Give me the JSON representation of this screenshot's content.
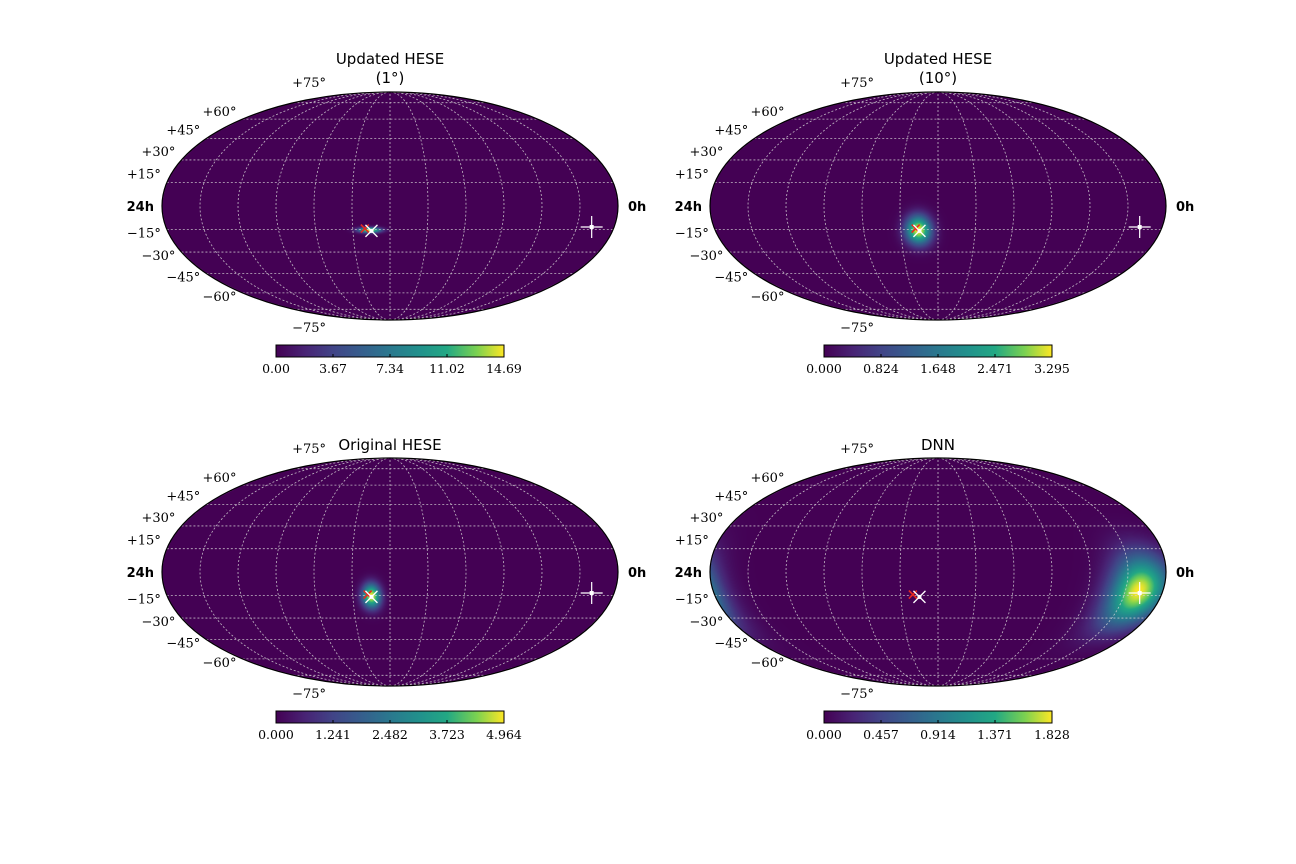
{
  "figure": {
    "panels": [
      {
        "title_line1": "Updated HESE",
        "title_line2": "(1°)",
        "lat_labels": [
          "+75°",
          "+60°",
          "+45°",
          "+30°",
          "+15°",
          "−15°",
          "−30°",
          "−45°",
          "−60°",
          "−75°"
        ],
        "ra_left": "24h",
        "ra_right": "0h",
        "colorbar_ticks": [
          "0.00",
          "3.67",
          "7.34",
          "11.02",
          "14.69"
        ]
      },
      {
        "title_line1": "Updated HESE",
        "title_line2": "(10°)",
        "lat_labels": [
          "+75°",
          "+60°",
          "+45°",
          "+30°",
          "+15°",
          "−15°",
          "−30°",
          "−45°",
          "−60°",
          "−75°"
        ],
        "ra_left": "24h",
        "ra_right": "0h",
        "colorbar_ticks": [
          "0.000",
          "0.824",
          "1.648",
          "2.471",
          "3.295"
        ]
      },
      {
        "title_line1": "Original HESE",
        "title_line2": "",
        "lat_labels": [
          "+75°",
          "+60°",
          "+45°",
          "+30°",
          "+15°",
          "−15°",
          "−30°",
          "−45°",
          "−60°",
          "−75°"
        ],
        "ra_left": "24h",
        "ra_right": "0h",
        "colorbar_ticks": [
          "0.000",
          "1.241",
          "2.482",
          "3.723",
          "4.964"
        ]
      },
      {
        "title_line1": "DNN",
        "title_line2": "",
        "lat_labels": [
          "+75°",
          "+60°",
          "+45°",
          "+30°",
          "+15°",
          "−15°",
          "−30°",
          "−45°",
          "−60°",
          "−75°"
        ],
        "ra_left": "24h",
        "ra_right": "0h",
        "colorbar_ticks": [
          "0.000",
          "0.457",
          "0.914",
          "1.371",
          "1.828"
        ]
      }
    ]
  },
  "chart_data": [
    {
      "type": "heatmap",
      "projection": "mollweide",
      "title": "Updated HESE (1°)",
      "colormap": "viridis",
      "colorbar_range": [
        0.0,
        14.69
      ],
      "colorbar_ticks": [
        0.0,
        3.67,
        7.34,
        11.02,
        14.69
      ],
      "grid": true,
      "hotspots": [
        {
          "ra_h": 13.1,
          "dec_deg": -15.5,
          "sigma_lon_deg": 6,
          "sigma_lat_deg": 1.2,
          "peak": 1.0
        }
      ],
      "markers": [
        {
          "kind": "red-x",
          "ra_h": 13.35,
          "dec_deg": -14.5
        },
        {
          "kind": "white-x",
          "ra_h": 13.0,
          "dec_deg": -16
        },
        {
          "kind": "white-cross",
          "ra_h": 1.2,
          "dec_deg": -13.5
        }
      ]
    },
    {
      "type": "heatmap",
      "projection": "mollweide",
      "title": "Updated HESE (10°)",
      "colormap": "viridis",
      "colorbar_range": [
        0.0,
        3.295
      ],
      "colorbar_ticks": [
        0.0,
        0.824,
        1.648,
        2.471,
        3.295
      ],
      "grid": true,
      "hotspots": [
        {
          "ra_h": 13.05,
          "dec_deg": -15.5,
          "sigma_lon_deg": 7,
          "sigma_lat_deg": 6.5,
          "peak": 1.0
        }
      ],
      "markers": [
        {
          "kind": "red-x",
          "ra_h": 13.2,
          "dec_deg": -14.5
        },
        {
          "kind": "white-x",
          "ra_h": 13.0,
          "dec_deg": -16
        },
        {
          "kind": "white-cross",
          "ra_h": 1.2,
          "dec_deg": -13.5
        }
      ]
    },
    {
      "type": "heatmap",
      "projection": "mollweide",
      "title": "Original HESE",
      "colormap": "viridis",
      "colorbar_range": [
        0.0,
        4.964
      ],
      "colorbar_ticks": [
        0.0,
        1.241,
        2.482,
        3.723,
        4.964
      ],
      "grid": true,
      "hotspots": [
        {
          "ra_h": 13.0,
          "dec_deg": -15.5,
          "sigma_lon_deg": 5,
          "sigma_lat_deg": 5.5,
          "peak": 1.0
        }
      ],
      "markers": [
        {
          "kind": "red-x",
          "ra_h": 13.2,
          "dec_deg": -14.5
        },
        {
          "kind": "white-x",
          "ra_h": 13.0,
          "dec_deg": -16
        },
        {
          "kind": "white-cross",
          "ra_h": 1.2,
          "dec_deg": -13.5
        }
      ]
    },
    {
      "type": "heatmap",
      "projection": "mollweide",
      "title": "DNN",
      "colormap": "viridis",
      "colorbar_range": [
        0.0,
        1.828
      ],
      "colorbar_ticks": [
        0.0,
        0.457,
        0.914,
        1.371,
        1.828
      ],
      "grid": true,
      "hotspots": [
        {
          "ra_h": 1.3,
          "dec_deg": -12,
          "sigma_lon_deg": 16,
          "sigma_lat_deg": 16,
          "peak": 1.0
        }
      ],
      "markers": [
        {
          "kind": "red-x",
          "ra_h": 13.35,
          "dec_deg": -14.5
        },
        {
          "kind": "white-x",
          "ra_h": 13.0,
          "dec_deg": -16
        },
        {
          "kind": "white-cross",
          "ra_h": 1.2,
          "dec_deg": -13.5
        }
      ]
    }
  ]
}
